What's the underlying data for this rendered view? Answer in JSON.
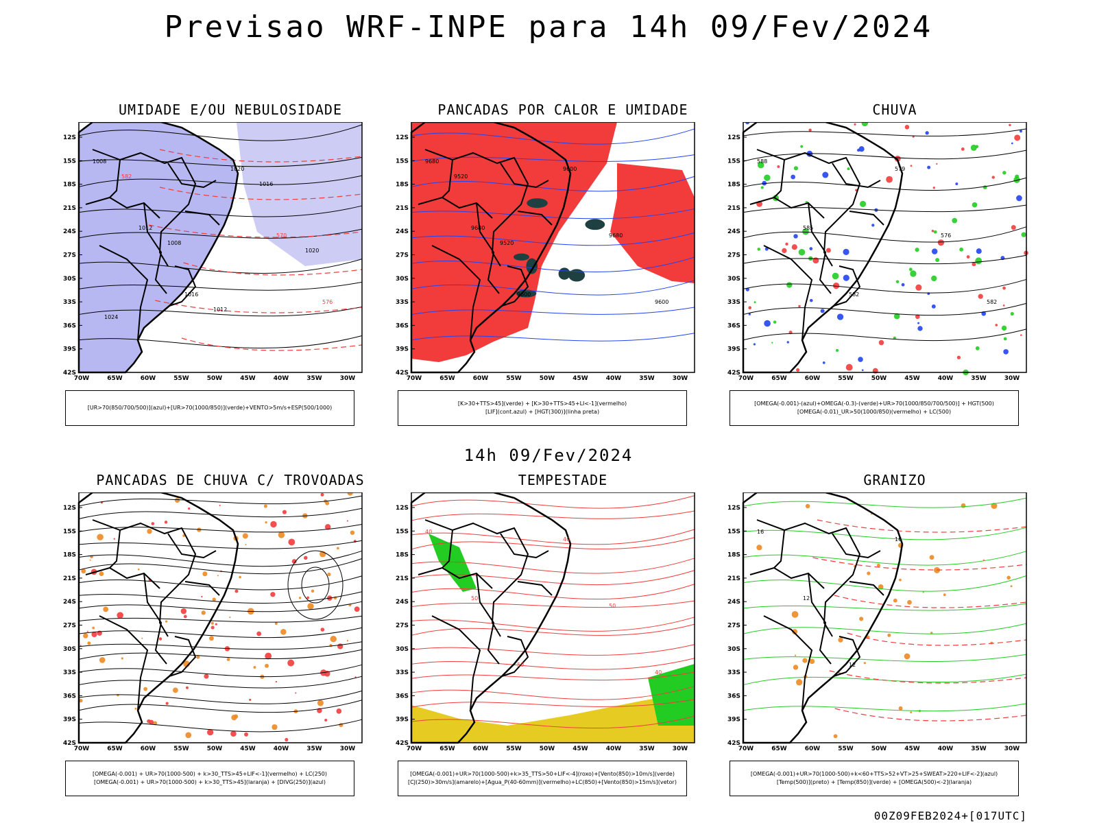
{
  "title": "Previsao WRF-INPE  para 14h 09/Fev/2024",
  "subtitle": "14h 09/Fev/2024",
  "footer": "00Z09FEB2024+[017UTC]",
  "axes": {
    "lat_labels": [
      "12S",
      "15S",
      "18S",
      "21S",
      "24S",
      "27S",
      "30S",
      "33S",
      "36S",
      "39S",
      "42S"
    ],
    "lon_labels": [
      "70W",
      "65W",
      "60W",
      "55W",
      "50W",
      "45W",
      "40W",
      "35W",
      "30W"
    ]
  },
  "colors": {
    "blue_shade": "#aaaaee",
    "red": "#f23c3c",
    "green": "#22cc22",
    "blue": "#2244ee",
    "dark": "#1e4040",
    "yellow": "#e6cc22",
    "orange": "#ee8822"
  },
  "panels": [
    {
      "title": "UMIDADE E/OU NEBULOSIDADE",
      "legend": [
        "[UR>70(850/700/500)](azul)+[UR>70(1000/850)](verde)+VENTO>5m/s+ESP(500/1000)"
      ],
      "contour_labels": [
        "1008",
        "1012",
        "1016",
        "1020",
        "570",
        "576",
        "582",
        "1008",
        "1012",
        "1016",
        "1020",
        "1024"
      ]
    },
    {
      "title": "PANCADAS POR CALOR E UMIDADE",
      "legend": [
        "[K>30+TTS>45](verde) + [K>30+TTS>45+LI<-1](vermelho)",
        "[LIF](cont.azul) + [HGT(300)](linha preta)"
      ],
      "contour_labels": [
        "9680",
        "9680",
        "9600",
        "9600",
        "9680",
        "9600",
        "9520",
        "9520"
      ]
    },
    {
      "title": "CHUVA",
      "legend": [
        "[OMEGA(-0.001)-(azul)+OMEGA(-0.3)-(verde)+UR>70(1000/850/700/500)] + HGT(500)",
        "[OMEGA(-0.01)_UR>50(1000/850)(vermelho) + LC(500)"
      ],
      "contour_labels": [
        "588",
        "585",
        "582",
        "579",
        "576",
        "582"
      ]
    },
    {
      "title": "PANCADAS DE CHUVA C/ TROVOADAS",
      "legend": [
        "[OMEGA(-0.001) + UR>70(1000-500) + k>30_TTS>45+LIF<-1](vermelho) + LC(250)",
        "[OMEGA(-0.001) + UR>70(1000-500) + k>30_TTS>45](laranja) + [DIVG(250)](azul)"
      ],
      "contour_labels": []
    },
    {
      "title": "TEMPESTADE",
      "legend": [
        "[OMEGA(-0.001)+UR>70(1000-500)+k>35_TTS>50+LIF<-4](roxo)+[Vento(850)>10m/s](verde)",
        "[CJ(250)>30m/s](amarelo)+[Agua_P(40-60mm)](vermelho)+LC(850)+[Vento(850)>15m/s](vetor)"
      ],
      "contour_labels": [
        "40",
        "50",
        "50",
        "40",
        "50",
        "40"
      ]
    },
    {
      "title": "GRANIZO",
      "legend": [
        "[OMEGA(-0.001)+UR>70(1000-500)+k<60+TTS>52+VT>25+SWEAT>220+LIF<-2](azul)",
        "[Temp(500)](preto) + [Temp(850)](verde) + [OMEGA(500)<-2](laranja)"
      ],
      "contour_labels": [
        "16",
        "12",
        "12",
        "16"
      ]
    }
  ]
}
